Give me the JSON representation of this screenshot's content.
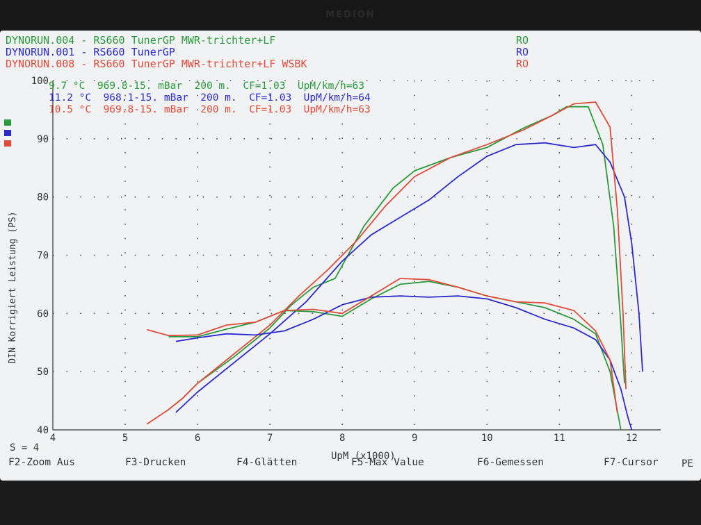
{
  "colors": {
    "green": "#2a9a3c",
    "blue": "#2a2ad0",
    "red": "#e24a3a",
    "axis": "#333333",
    "grid": "#555555",
    "background": "#f1f2f3"
  },
  "header": {
    "runs": [
      {
        "label": "DYNORUN.004 - RS660 TunerGP MWR-trichter+LF",
        "code": "RO",
        "color": "#2a9a3c"
      },
      {
        "label": "DYNORUN.001 - RS660 TunerGP",
        "code": "RO",
        "color": "#2a2ad0"
      },
      {
        "label": "DYNORUN.008 - RS660 TunerGP MWR-trichter+LF WSBK",
        "code": "RO",
        "color": "#e24a3a"
      }
    ],
    "conditions": [
      {
        "text": "9.7 °C  969.8-15. mBar  200 m.  CF=1.03  UpM/km/h=63",
        "color": "#2a9a3c"
      },
      {
        "text": "11.2 °C  968.1-15. mBar  200 m.  CF=1.03  UpM/km/h=64",
        "color": "#2a2ad0"
      },
      {
        "text": "10.5 °C  969.8-15. mBar  200 m.  CF=1.03  UpM/km/h=63",
        "color": "#e24a3a"
      }
    ]
  },
  "footer": {
    "smoothing": "S = 4",
    "keys": [
      "F2-Zoom Aus",
      "F3-Drucken",
      "F4-Glätten",
      "F5-Max Value",
      "F6-Gemessen",
      "F7-Cursor"
    ],
    "pe": "PE"
  },
  "bezel": {
    "brand": "MEDION"
  },
  "chart_data": {
    "type": "line",
    "xlabel": "UpM (x1000)",
    "ylabel": "DIN Korrigiert Leistung (PS)",
    "xlim": [
      4,
      12.4
    ],
    "ylim": [
      40,
      100
    ],
    "xticks": [
      4,
      5,
      6,
      7,
      8,
      9,
      10,
      11,
      12
    ],
    "yticks": [
      40,
      50,
      60,
      70,
      80,
      90,
      100
    ],
    "grid": true,
    "legend": "top-left",
    "series": [
      {
        "name": "DYNORUN.004",
        "kind": "power",
        "color": "#2a9a3c",
        "x": [
          5.6,
          5.8,
          6.0,
          6.5,
          7.0,
          7.3,
          7.6,
          7.9,
          8.3,
          8.7,
          9.0,
          9.5,
          10.0,
          10.5,
          10.9,
          11.1,
          11.4,
          11.6,
          11.75,
          11.85,
          11.9
        ],
        "y": [
          43.5,
          45.5,
          48.0,
          52.5,
          57.5,
          61.5,
          64.5,
          66.0,
          75.0,
          81.5,
          84.5,
          86.8,
          88.5,
          91.8,
          94.0,
          95.5,
          95.5,
          89.0,
          75.0,
          58.0,
          48.0
        ]
      },
      {
        "name": "DYNORUN.001",
        "kind": "power",
        "color": "#2a2ad0",
        "x": [
          5.7,
          6.0,
          6.5,
          7.0,
          7.5,
          8.0,
          8.4,
          8.8,
          9.2,
          9.6,
          10.0,
          10.4,
          10.8,
          11.2,
          11.5,
          11.7,
          11.9,
          12.0,
          12.1,
          12.15
        ],
        "y": [
          43.0,
          46.5,
          51.5,
          56.5,
          62.0,
          69.0,
          73.5,
          76.5,
          79.5,
          83.5,
          87.0,
          89.0,
          89.3,
          88.5,
          89.0,
          86.0,
          80.0,
          72.0,
          60.0,
          50.0
        ]
      },
      {
        "name": "DYNORUN.008",
        "kind": "power",
        "color": "#e24a3a",
        "x": [
          5.3,
          5.6,
          5.8,
          6.0,
          6.5,
          7.0,
          7.4,
          7.8,
          8.2,
          8.6,
          9.0,
          9.5,
          10.0,
          10.5,
          10.9,
          11.2,
          11.5,
          11.7,
          11.8,
          11.88,
          11.92
        ],
        "y": [
          41.0,
          43.5,
          45.5,
          48.0,
          53.0,
          58.0,
          63.0,
          67.5,
          72.5,
          78.5,
          83.5,
          86.8,
          89.0,
          91.5,
          94.0,
          96.0,
          96.3,
          92.0,
          78.0,
          60.0,
          47.0
        ]
      },
      {
        "name": "DYNORUN.004",
        "kind": "torque",
        "color": "#2a9a3c",
        "x": [
          5.6,
          6.0,
          6.4,
          6.8,
          7.2,
          7.6,
          8.0,
          8.4,
          8.8,
          9.2,
          9.6,
          10.0,
          10.4,
          10.8,
          11.2,
          11.5,
          11.7,
          11.85
        ],
        "y": [
          56.0,
          56.0,
          57.3,
          58.5,
          60.5,
          60.3,
          59.5,
          62.5,
          65.0,
          65.5,
          64.5,
          63.0,
          62.0,
          61.0,
          59.0,
          56.5,
          50.0,
          40.0
        ]
      },
      {
        "name": "DYNORUN.001",
        "kind": "torque",
        "color": "#2a2ad0",
        "x": [
          5.7,
          6.0,
          6.4,
          6.8,
          7.2,
          7.6,
          8.0,
          8.4,
          8.8,
          9.2,
          9.6,
          10.0,
          10.4,
          10.8,
          11.2,
          11.5,
          11.7,
          11.85,
          11.95,
          12.0
        ],
        "y": [
          55.2,
          55.8,
          56.5,
          56.3,
          57.0,
          59.0,
          61.5,
          62.8,
          63.0,
          62.8,
          63.0,
          62.5,
          61.0,
          59.0,
          57.5,
          55.5,
          52.0,
          47.0,
          42.0,
          40.0
        ]
      },
      {
        "name": "DYNORUN.008",
        "kind": "torque",
        "color": "#e24a3a",
        "x": [
          5.3,
          5.6,
          6.0,
          6.4,
          6.8,
          7.2,
          7.6,
          8.0,
          8.4,
          8.8,
          9.2,
          9.6,
          10.0,
          10.4,
          10.8,
          11.2,
          11.5,
          11.7,
          11.8
        ],
        "y": [
          57.2,
          56.2,
          56.3,
          58.0,
          58.5,
          60.5,
          60.7,
          60.0,
          63.0,
          66.0,
          65.8,
          64.5,
          63.0,
          62.0,
          61.8,
          60.5,
          57.0,
          52.0,
          43.0
        ]
      }
    ]
  }
}
